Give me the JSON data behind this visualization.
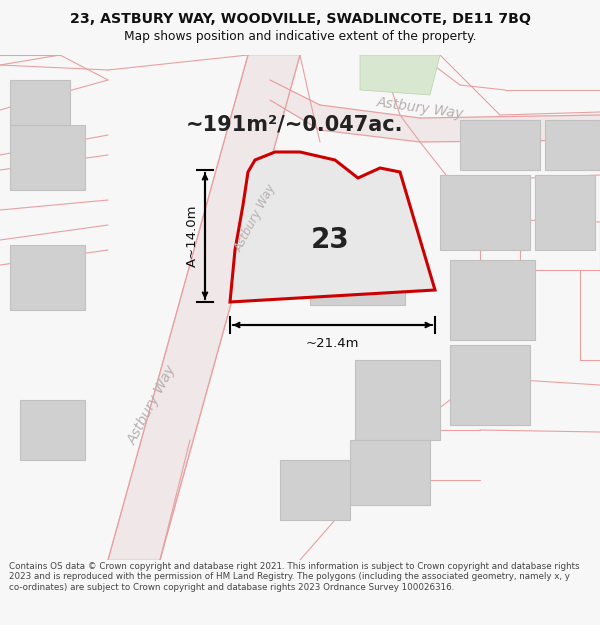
{
  "title_line1": "23, ASTBURY WAY, WOODVILLE, SWADLINCOTE, DE11 7BQ",
  "title_line2": "Map shows position and indicative extent of the property.",
  "area_text": "~191m²/~0.047ac.",
  "plot_number": "23",
  "dim_width": "~21.4m",
  "dim_height": "A~14.0m",
  "footer_text": "Contains OS data © Crown copyright and database right 2021. This information is subject to Crown copyright and database rights 2023 and is reproduced with the permission of HM Land Registry. The polygons (including the associated geometry, namely x, y co-ordinates) are subject to Crown copyright and database rights 2023 Ordnance Survey 100026316.",
  "bg_color": "#f7f7f7",
  "map_bg": "#eeebeb",
  "road_fill": "#f0e8e8",
  "road_edge": "#e0b8b8",
  "pink_line": "#e8a0a0",
  "plot_fill": "#e8e8e8",
  "plot_outline": "#cc0000",
  "building_fill": "#d0d0d0",
  "building_outline": "#c0c0c0",
  "green_fill": "#d8e8d0",
  "green_outline": "#b8d0b0",
  "road_label_color": "#b8b0b0",
  "title_color": "#111111",
  "dim_color": "#111111",
  "area_color": "#222222",
  "footer_color": "#444444",
  "dim_v_label": "A~14.0m"
}
